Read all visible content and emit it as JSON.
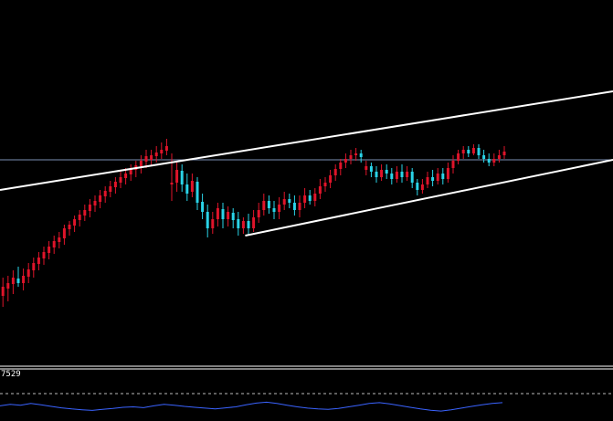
{
  "chart_data": {
    "type": "candlestick",
    "colors": {
      "background": "#000000",
      "bull": "#e0142a",
      "bear": "#2ad4e8",
      "trendline": "#ffffff",
      "price_line": "#7d8fb5",
      "indicator_line": "#3a63ff",
      "separator": "#ffffff",
      "dashed_level": "#bdbdbd"
    },
    "y_range": [
      0,
      400
    ],
    "current_price_level": 225,
    "candles": [
      [
        58,
        63,
        38,
        70
      ],
      [
        72,
        60,
        42,
        80
      ],
      [
        62,
        78,
        52,
        92
      ],
      [
        76,
        86,
        64,
        96
      ],
      [
        84,
        90,
        70,
        98
      ],
      [
        89,
        96,
        78,
        104
      ],
      [
        95,
        90,
        86,
        108
      ],
      [
        90,
        98,
        82,
        106
      ],
      [
        97,
        105,
        90,
        112
      ],
      [
        104,
        112,
        96,
        118
      ],
      [
        111,
        118,
        104,
        124
      ],
      [
        117,
        124,
        110,
        130
      ],
      [
        123,
        130,
        116,
        136
      ],
      [
        129,
        136,
        122,
        142
      ],
      [
        135,
        140,
        128,
        146
      ],
      [
        139,
        150,
        132,
        154
      ],
      [
        149,
        154,
        142,
        158
      ],
      [
        153,
        160,
        146,
        164
      ],
      [
        159,
        165,
        152,
        170
      ],
      [
        164,
        170,
        158,
        176
      ],
      [
        169,
        176,
        162,
        182
      ],
      [
        175,
        180,
        168,
        186
      ],
      [
        179,
        186,
        172,
        192
      ],
      [
        185,
        191,
        178,
        196
      ],
      [
        190,
        196,
        184,
        202
      ],
      [
        195,
        201,
        188,
        206
      ],
      [
        200,
        206,
        194,
        212
      ],
      [
        205,
        210,
        198,
        216
      ],
      [
        209,
        215,
        202,
        220
      ],
      [
        214,
        219,
        206,
        224
      ],
      [
        218,
        224,
        210,
        230
      ],
      [
        223,
        229,
        216,
        236
      ],
      [
        225,
        230,
        218,
        236
      ],
      [
        229,
        233,
        222,
        240
      ],
      [
        232,
        236,
        226,
        244
      ],
      [
        235,
        240,
        230,
        248
      ],
      [
        198,
        200,
        180,
        232
      ],
      [
        200,
        214,
        190,
        222
      ],
      [
        213,
        198,
        190,
        220
      ],
      [
        198,
        188,
        180,
        210
      ],
      [
        190,
        202,
        184,
        210
      ],
      [
        201,
        178,
        170,
        206
      ],
      [
        179,
        168,
        160,
        188
      ],
      [
        168,
        150,
        140,
        176
      ],
      [
        150,
        160,
        144,
        168
      ],
      [
        160,
        172,
        152,
        178
      ],
      [
        171,
        160,
        150,
        178
      ],
      [
        160,
        168,
        152,
        174
      ],
      [
        167,
        159,
        150,
        172
      ],
      [
        160,
        150,
        142,
        168
      ],
      [
        150,
        158,
        144,
        162
      ],
      [
        158,
        150,
        142,
        166
      ],
      [
        150,
        162,
        146,
        170
      ],
      [
        162,
        170,
        156,
        178
      ],
      [
        170,
        180,
        164,
        188
      ],
      [
        180,
        172,
        166,
        186
      ],
      [
        172,
        168,
        160,
        180
      ],
      [
        168,
        176,
        160,
        184
      ],
      [
        176,
        182,
        170,
        190
      ],
      [
        182,
        178,
        172,
        188
      ],
      [
        178,
        170,
        164,
        186
      ],
      [
        170,
        178,
        162,
        186
      ],
      [
        178,
        186,
        172,
        194
      ],
      [
        186,
        180,
        176,
        192
      ],
      [
        180,
        188,
        174,
        194
      ],
      [
        188,
        196,
        182,
        204
      ],
      [
        196,
        200,
        190,
        206
      ],
      [
        200,
        208,
        194,
        214
      ],
      [
        208,
        215,
        202,
        220
      ],
      [
        215,
        222,
        208,
        226
      ],
      [
        222,
        226,
        216,
        232
      ],
      [
        226,
        230,
        220,
        236
      ],
      [
        230,
        232,
        224,
        238
      ],
      [
        232,
        228,
        222,
        236
      ],
      [
        214,
        218,
        208,
        224
      ],
      [
        218,
        212,
        206,
        222
      ],
      [
        212,
        206,
        200,
        218
      ],
      [
        206,
        214,
        202,
        220
      ],
      [
        214,
        210,
        204,
        220
      ],
      [
        210,
        204,
        198,
        216
      ],
      [
        204,
        212,
        200,
        218
      ],
      [
        212,
        206,
        200,
        220
      ],
      [
        206,
        212,
        202,
        218
      ],
      [
        212,
        200,
        194,
        216
      ],
      [
        200,
        192,
        186,
        204
      ],
      [
        192,
        198,
        188,
        204
      ],
      [
        198,
        206,
        194,
        212
      ],
      [
        206,
        202,
        196,
        214
      ],
      [
        202,
        210,
        198,
        216
      ],
      [
        210,
        204,
        198,
        216
      ],
      [
        204,
        216,
        200,
        222
      ],
      [
        216,
        224,
        210,
        230
      ],
      [
        224,
        232,
        220,
        236
      ],
      [
        232,
        236,
        226,
        240
      ],
      [
        236,
        232,
        228,
        240
      ],
      [
        232,
        238,
        230,
        242
      ],
      [
        238,
        230,
        226,
        242
      ],
      [
        230,
        226,
        222,
        236
      ],
      [
        226,
        222,
        218,
        232
      ],
      [
        222,
        226,
        218,
        232
      ],
      [
        226,
        230,
        222,
        236
      ],
      [
        230,
        234,
        226,
        240
      ]
    ],
    "trendlines": [
      {
        "from": [
          0,
          192
        ],
        "to": [
          100,
          300
        ]
      },
      {
        "from": [
          40,
          142
        ],
        "to": [
          100,
          225
        ]
      }
    ],
    "indicator": {
      "label": "7529",
      "values": [
        0.55,
        0.62,
        0.58,
        0.66,
        0.6,
        0.52,
        0.45,
        0.4,
        0.36,
        0.33,
        0.38,
        0.42,
        0.48,
        0.5,
        0.46,
        0.55,
        0.62,
        0.58,
        0.52,
        0.48,
        0.44,
        0.4,
        0.45,
        0.5,
        0.6,
        0.68,
        0.72,
        0.66,
        0.58,
        0.5,
        0.44,
        0.4,
        0.38,
        0.42,
        0.5,
        0.58,
        0.66,
        0.7,
        0.64,
        0.56,
        0.48,
        0.4,
        0.34,
        0.3,
        0.36,
        0.44,
        0.52,
        0.6,
        0.66,
        0.7
      ]
    }
  }
}
